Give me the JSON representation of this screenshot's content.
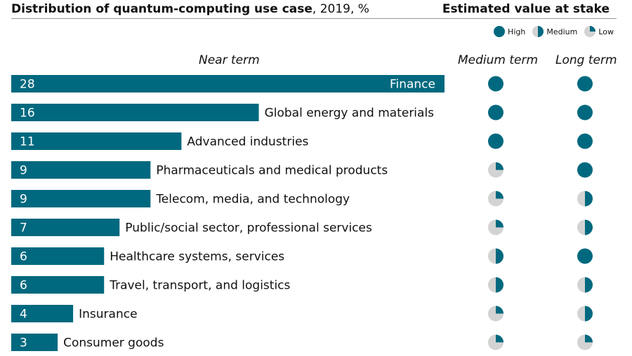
{
  "header": {
    "title_bold": "Distribution of quantum-computing use case",
    "title_rest": ", 2019, %",
    "right_title": "Estimated value at stake"
  },
  "legend": {
    "high": "High",
    "medium": "Medium",
    "low": "Low"
  },
  "columns": {
    "near": "Near term",
    "medium": "Medium term",
    "long": "Long term"
  },
  "colors": {
    "bar": "#00697f",
    "pie_fill": "#00697f",
    "pie_empty": "#d3d3d3"
  },
  "chart_data": {
    "type": "bar",
    "orientation": "horizontal",
    "categories": [
      "Finance",
      "Global energy and materials",
      "Advanced industries",
      "Pharmaceuticals and medical products",
      "Telecom, media, and technology",
      "Public/social sector, professional services",
      "Healthcare systems, services",
      "Travel, transport, and logistics",
      "Insurance",
      "Consumer goods"
    ],
    "values": [
      28,
      16,
      11,
      9,
      9,
      7,
      6,
      6,
      4,
      3
    ],
    "medium_term": [
      "High",
      "High",
      "High",
      "Low",
      "Low",
      "Low",
      "Medium",
      "Medium",
      "Low",
      "Low"
    ],
    "long_term": [
      "High",
      "High",
      "High",
      "High",
      "Medium",
      "Medium",
      "High",
      "Medium",
      "Medium",
      "Low"
    ],
    "xlim": [
      0,
      28
    ]
  }
}
